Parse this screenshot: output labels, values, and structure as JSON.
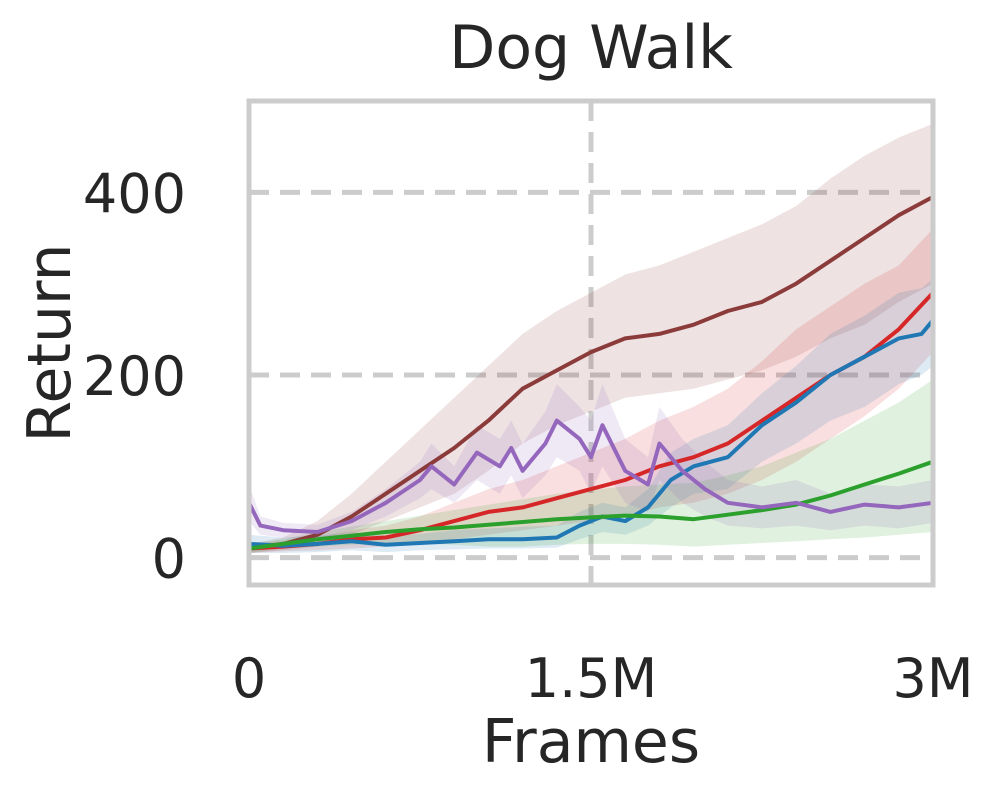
{
  "chart_data": {
    "type": "line",
    "title": "Dog Walk",
    "xlabel": "Frames",
    "ylabel": "Return",
    "xlim": [
      0,
      3000000
    ],
    "ylim": [
      -30,
      500
    ],
    "xticks": [
      {
        "value": 0,
        "label": "0"
      },
      {
        "value": 1500000,
        "label": "1.5M"
      },
      {
        "value": 3000000,
        "label": "3M"
      }
    ],
    "yticks": [
      {
        "value": 0,
        "label": "0"
      },
      {
        "value": 200,
        "label": "200"
      },
      {
        "value": 400,
        "label": "400"
      }
    ],
    "grid": true,
    "legend": "none",
    "series": [
      {
        "color": "#8c3b3b",
        "x": [
          0,
          150000,
          300000,
          450000,
          600000,
          750000,
          900000,
          1050000,
          1200000,
          1350000,
          1500000,
          1650000,
          1800000,
          1950000,
          2100000,
          2250000,
          2400000,
          2550000,
          2700000,
          2850000,
          3000000
        ],
        "values": [
          10,
          15,
          25,
          45,
          70,
          95,
          120,
          150,
          185,
          205,
          225,
          240,
          245,
          255,
          270,
          280,
          300,
          325,
          350,
          375,
          395
        ],
        "lower": [
          5,
          8,
          12,
          25,
          40,
          55,
          70,
          95,
          125,
          145,
          160,
          175,
          180,
          185,
          195,
          205,
          220,
          240,
          255,
          280,
          300
        ],
        "upper": [
          15,
          22,
          40,
          70,
          105,
          140,
          175,
          210,
          245,
          270,
          290,
          310,
          320,
          335,
          350,
          365,
          385,
          415,
          440,
          460,
          475
        ]
      },
      {
        "color": "#d62728",
        "x": [
          0,
          150000,
          300000,
          450000,
          600000,
          750000,
          900000,
          1050000,
          1200000,
          1350000,
          1500000,
          1650000,
          1800000,
          1950000,
          2100000,
          2250000,
          2400000,
          2550000,
          2700000,
          2850000,
          3000000
        ],
        "values": [
          10,
          12,
          15,
          20,
          22,
          30,
          40,
          50,
          55,
          65,
          75,
          85,
          100,
          110,
          125,
          150,
          175,
          200,
          220,
          250,
          290
        ],
        "lower": [
          5,
          7,
          8,
          10,
          12,
          15,
          20,
          25,
          30,
          35,
          40,
          45,
          55,
          60,
          70,
          85,
          105,
          130,
          155,
          185,
          225
        ],
        "upper": [
          15,
          18,
          22,
          30,
          35,
          45,
          60,
          75,
          85,
          100,
          115,
          130,
          150,
          165,
          185,
          215,
          250,
          275,
          300,
          320,
          360
        ]
      },
      {
        "color": "#1f77b4",
        "x": [
          0,
          150000,
          300000,
          450000,
          600000,
          750000,
          900000,
          1050000,
          1200000,
          1350000,
          1450000,
          1550000,
          1650000,
          1750000,
          1850000,
          1950000,
          2100000,
          2250000,
          2400000,
          2550000,
          2700000,
          2850000,
          2950000,
          3000000
        ],
        "values": [
          15,
          13,
          15,
          18,
          14,
          16,
          18,
          20,
          20,
          22,
          35,
          45,
          40,
          55,
          85,
          100,
          110,
          145,
          170,
          200,
          220,
          240,
          245,
          260
        ],
        "lower": [
          5,
          5,
          6,
          8,
          6,
          8,
          9,
          10,
          10,
          11,
          20,
          28,
          25,
          35,
          55,
          70,
          75,
          105,
          125,
          150,
          165,
          190,
          200,
          210
        ],
        "upper": [
          25,
          22,
          24,
          28,
          24,
          26,
          30,
          32,
          34,
          35,
          50,
          60,
          55,
          75,
          115,
          130,
          145,
          180,
          210,
          245,
          265,
          290,
          295,
          305
        ]
      },
      {
        "color": "#2ca02c",
        "x": [
          0,
          150000,
          300000,
          450000,
          600000,
          750000,
          900000,
          1050000,
          1200000,
          1350000,
          1500000,
          1650000,
          1800000,
          1950000,
          2100000,
          2250000,
          2400000,
          2550000,
          2700000,
          2850000,
          3000000
        ],
        "values": [
          10,
          15,
          20,
          24,
          28,
          31,
          33,
          36,
          39,
          42,
          44,
          46,
          45,
          42,
          47,
          52,
          58,
          68,
          80,
          92,
          105
        ],
        "lower": [
          5,
          10,
          12,
          14,
          16,
          15,
          14,
          12,
          12,
          14,
          15,
          15,
          14,
          12,
          14,
          16,
          18,
          20,
          22,
          25,
          28
        ],
        "upper": [
          15,
          20,
          28,
          34,
          40,
          46,
          52,
          58,
          64,
          70,
          74,
          78,
          80,
          82,
          90,
          100,
          115,
          130,
          150,
          170,
          195
        ]
      },
      {
        "color": "#9467bd",
        "x": [
          0,
          50000,
          150000,
          300000,
          450000,
          600000,
          750000,
          800000,
          900000,
          1000000,
          1100000,
          1150000,
          1200000,
          1300000,
          1350000,
          1450000,
          1500000,
          1550000,
          1650000,
          1750000,
          1800000,
          1900000,
          2000000,
          2100000,
          2250000,
          2400000,
          2550000,
          2700000,
          2850000,
          3000000
        ],
        "values": [
          60,
          35,
          30,
          28,
          40,
          60,
          85,
          100,
          80,
          115,
          100,
          120,
          95,
          125,
          150,
          130,
          110,
          145,
          95,
          80,
          125,
          95,
          75,
          60,
          55,
          60,
          50,
          58,
          55,
          60
        ],
        "lower": [
          40,
          25,
          22,
          20,
          30,
          45,
          65,
          75,
          60,
          85,
          70,
          90,
          65,
          90,
          110,
          95,
          70,
          100,
          60,
          50,
          85,
          60,
          45,
          35,
          32,
          35,
          30,
          35,
          32,
          38
        ],
        "upper": [
          80,
          45,
          38,
          36,
          50,
          75,
          105,
          125,
          100,
          145,
          130,
          150,
          125,
          160,
          190,
          165,
          150,
          190,
          130,
          110,
          165,
          130,
          105,
          85,
          78,
          85,
          70,
          80,
          78,
          85
        ]
      }
    ]
  }
}
